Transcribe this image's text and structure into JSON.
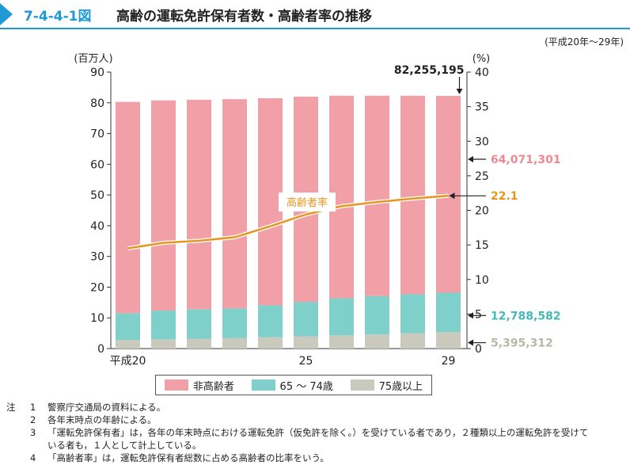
{
  "header": {
    "fig_number": "7-4-4-1図",
    "title": "高齢の運転免許保有者数・高齢者率の推移",
    "period": "(平成20年～29年)"
  },
  "chart_data": {
    "type": "bar",
    "stacked": true,
    "categories": [
      "平成20",
      "",
      "",
      "",
      "",
      "25",
      "",
      "",
      "",
      "29"
    ],
    "y_left": {
      "label": "(百万人)",
      "range": [
        0,
        90
      ],
      "ticks": [
        0,
        10,
        20,
        30,
        40,
        50,
        60,
        70,
        80,
        90
      ]
    },
    "y_right": {
      "label": "(%)",
      "range": [
        0,
        40
      ],
      "ticks": [
        0,
        5,
        10,
        15,
        20,
        25,
        30,
        35,
        40
      ]
    },
    "series": [
      {
        "name": "75歳以上",
        "color": "#c9c9bd",
        "values": [
          2.8,
          3.0,
          3.2,
          3.4,
          3.7,
          4.0,
          4.3,
          4.6,
          5.0,
          5.395312
        ]
      },
      {
        "name": "65 ～ 74歳",
        "color": "#7fcfcb",
        "values": [
          8.7,
          9.4,
          9.6,
          9.7,
          10.4,
          11.2,
          12.1,
          12.5,
          12.7,
          12.788582
        ]
      },
      {
        "name": "非高齢者",
        "color": "#f2a0a8",
        "values": [
          68.8,
          68.4,
          68.2,
          68.1,
          67.4,
          66.8,
          65.9,
          65.2,
          64.6,
          64.071301
        ]
      }
    ],
    "line": {
      "name": "高齢者率",
      "color": "#e8951f",
      "values": [
        14.5,
        15.3,
        15.6,
        16.1,
        17.7,
        19.4,
        20.6,
        21.2,
        21.7,
        22.1
      ]
    },
    "annotations": {
      "total": "82,255,195",
      "non_elderly": "64,071,301",
      "age_65_74": "12,788,582",
      "age_75_plus": "5,395,312",
      "rate": "22.1",
      "line_label": "高齢者率"
    }
  },
  "legend": [
    {
      "label": "非高齢者",
      "color": "#f2a0a8"
    },
    {
      "label": "65 ～ 74歳",
      "color": "#7fcfcb"
    },
    {
      "label": "75歳以上",
      "color": "#c9c9bd"
    }
  ],
  "notes": {
    "prefix": "注",
    "items": [
      {
        "num": "1",
        "text": "警察庁交通局の資料による。"
      },
      {
        "num": "2",
        "text": "各年末時点の年齢による。"
      },
      {
        "num": "3",
        "text": "「運転免許保有者」は，各年の年末時点における運転免許（仮免許を除く。）を受けている者であり，２種類以上の運転免許を受けて",
        "cont": "いる者も，１人として計上している。"
      },
      {
        "num": "4",
        "text": "「高齢者率」は，運転免許保有者総数に占める高齢者の比率をいう。"
      }
    ]
  }
}
